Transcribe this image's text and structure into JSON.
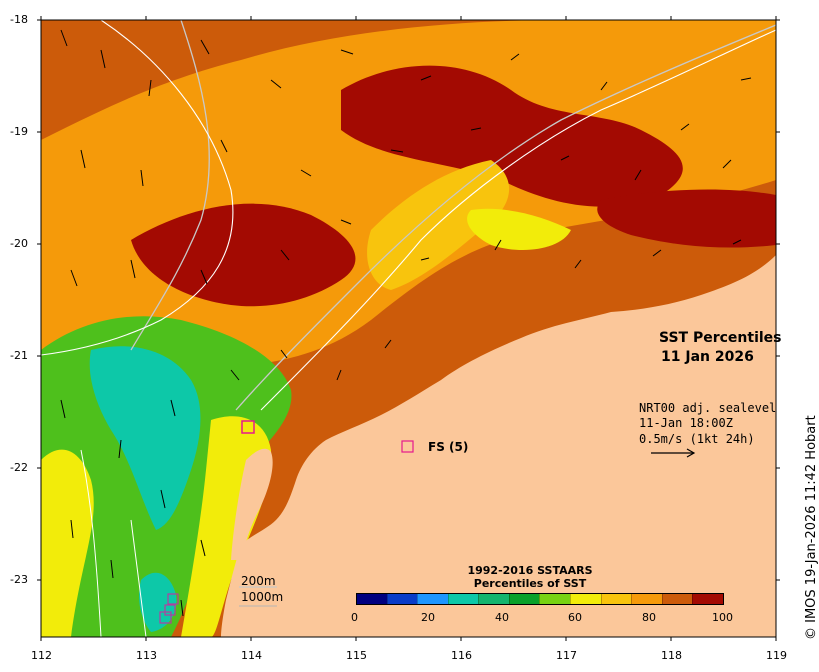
{
  "map": {
    "title_line1": "SST Percentiles",
    "title_line2": "11 Jan 2026",
    "x_ticks": [
      "112",
      "113",
      "114",
      "115",
      "116",
      "117",
      "118",
      "119"
    ],
    "y_ticks": [
      "-18",
      "-19",
      "-20",
      "-21",
      "-22",
      "-23"
    ],
    "lon_range": [
      112,
      119
    ],
    "lat_range": [
      -18,
      -23.5
    ],
    "colors": {
      "land": "#fbc79a",
      "dark_red": "#a30a02",
      "rust": "#cc5b0a",
      "orange": "#f59a0a",
      "yellow_orange": "#f8c40d",
      "yellow": "#f2ec0a",
      "green": "#4ec01c",
      "teal": "#0dc8a8"
    }
  },
  "current_info": {
    "line1": "NRT00 adj. sealevel",
    "line2": "11-Jan 18:00Z",
    "line3": "0.5m/s (1kt 24h)"
  },
  "site": {
    "label": "FS (5)"
  },
  "scale": {
    "line1": "200m",
    "line2": "1000m"
  },
  "legend": {
    "title_line1": "1992-2016 SSTAARS",
    "title_line2": "Percentiles of SST",
    "ticks": [
      "0",
      "20",
      "40",
      "60",
      "80",
      "100"
    ],
    "colors": [
      "#000080",
      "#0a3cc8",
      "#1e96ff",
      "#0dc8a8",
      "#14b46e",
      "#0aa02a",
      "#78d214",
      "#f2ec0a",
      "#f8c40d",
      "#f59a0a",
      "#cc5b0a",
      "#a30a02"
    ]
  },
  "credit": "© IMOS 19-Jan-2026 11:42 Hobart"
}
